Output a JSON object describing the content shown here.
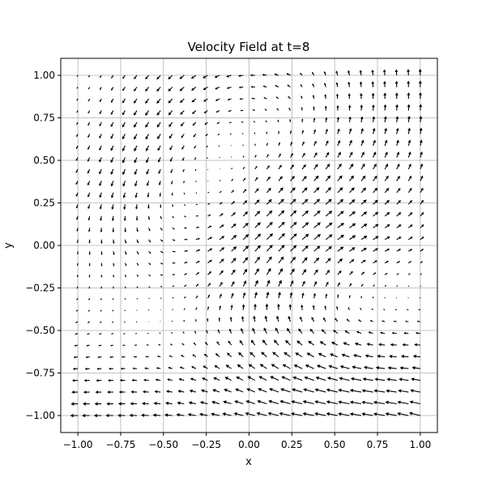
{
  "chart_data": {
    "type": "quiver",
    "title": "Velocity Field at t=8",
    "xlabel": "x",
    "ylabel": "y",
    "xlim": [
      -1.1,
      1.1
    ],
    "ylim": [
      -1.1,
      1.1
    ],
    "xticks": [
      -1.0,
      -0.75,
      -0.5,
      -0.25,
      0.0,
      0.25,
      0.5,
      0.75,
      1.0
    ],
    "yticks": [
      -1.0,
      -0.75,
      -0.5,
      -0.25,
      0.0,
      0.25,
      0.5,
      0.75,
      1.0
    ],
    "xtick_labels": [
      "−1.00",
      "−0.75",
      "−0.50",
      "−0.25",
      "0.00",
      "0.25",
      "0.50",
      "0.75",
      "1.00"
    ],
    "ytick_labels": [
      "−1.00",
      "−0.75",
      "−0.50",
      "−0.25",
      "0.00",
      "0.25",
      "0.50",
      "0.75",
      "1.00"
    ],
    "grid": true,
    "grid_points": {
      "x_range": [
        -1.0,
        1.0
      ],
      "y_range": [
        -1.0,
        1.0
      ],
      "count_per_axis": 30
    },
    "field_description": "velocity arrows on a 30x30 grid over [-1,1]x[-1,1]",
    "arrow_color": "#000000",
    "grid_color": "#b0b0b0"
  }
}
